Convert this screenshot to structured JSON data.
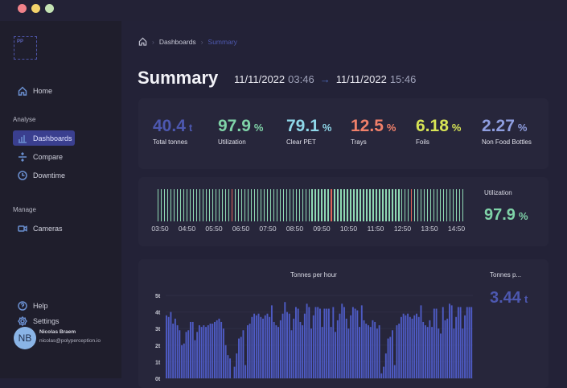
{
  "window": {
    "controls": [
      {
        "name": "close",
        "color": "#f0828a"
      },
      {
        "name": "minimize",
        "color": "#f3d36b"
      },
      {
        "name": "maximize",
        "color": "#c4e3b4"
      }
    ]
  },
  "sidebar": {
    "logo": "PP",
    "home": "Home",
    "sections": [
      {
        "title": "Analyse",
        "items": [
          {
            "label": "Dashboards",
            "icon": "bar-chart-icon",
            "active": true
          },
          {
            "label": "Compare",
            "icon": "compare-icon"
          },
          {
            "label": "Downtime",
            "icon": "clock-icon"
          }
        ]
      },
      {
        "title": "Manage",
        "items": [
          {
            "label": "Cameras",
            "icon": "camera-icon"
          }
        ]
      }
    ],
    "help": "Help",
    "settings": "Settings",
    "user": {
      "initials": "NB",
      "name": "Nicolas Braem",
      "email": "nicolas@polyperception.io"
    }
  },
  "breadcrumb": {
    "items": [
      "Dashboards",
      "Summary"
    ]
  },
  "header": {
    "title": "Summary",
    "start_date": "11/11/2022",
    "start_time": "03:46",
    "arrow": "→",
    "end_date": "11/11/2022",
    "end_time": "15:46"
  },
  "kpis": [
    {
      "value": "40.4",
      "unit": "t",
      "label": "Total tonnes",
      "color": "#4d58b0"
    },
    {
      "value": "97.9",
      "unit": "%",
      "label": "Utilization",
      "color": "#7fd3a8"
    },
    {
      "value": "79.1",
      "unit": "%",
      "label": "Clear PET",
      "color": "#8fd8ea"
    },
    {
      "value": "12.5",
      "unit": "%",
      "label": "Trays",
      "color": "#f0806a"
    },
    {
      "value": "6.18",
      "unit": "%",
      "label": "Foils",
      "color": "#d7e455"
    },
    {
      "value": "2.27",
      "unit": "%",
      "label": "Non Food Bottles",
      "color": "#8f9ee0"
    }
  ],
  "utilization": {
    "label": "Utilization",
    "value": "97.9",
    "unit": "%",
    "ticks": [
      "03:50",
      "04:50",
      "05:50",
      "06:50",
      "07:50",
      "08:50",
      "09:50",
      "10:50",
      "11:50",
      "12:50",
      "13:50",
      "14:50"
    ],
    "segments": 96,
    "downtime_segments": [
      23,
      54,
      79
    ],
    "colors": {
      "up": "#8fd9b4",
      "down": "#e0675a"
    }
  },
  "chart_data": {
    "type": "bar",
    "title": "Tonnes per hour",
    "ylabel": "",
    "ylim": [
      0,
      5
    ],
    "yticks": [
      "0t",
      "1t",
      "2t",
      "3t",
      "4t",
      "5t"
    ],
    "color": "#4e5bc4",
    "values": [
      3.8,
      3.7,
      4.0,
      3.3,
      3.6,
      3.2,
      2.9,
      2.0,
      2.1,
      2.8,
      2.9,
      3.4,
      3.4,
      2.3,
      2.8,
      3.2,
      3.1,
      3.2,
      3.1,
      3.2,
      3.3,
      3.3,
      3.4,
      3.5,
      3.6,
      3.4,
      3.0,
      2.0,
      1.4,
      1.2,
      0,
      0.7,
      1.5,
      2.4,
      2.5,
      2.9,
      0.8,
      3.2,
      3.3,
      3.7,
      3.9,
      3.8,
      3.9,
      3.7,
      3.6,
      3.8,
      3.9,
      3.7,
      4.4,
      3.4,
      3.2,
      3.1,
      3.5,
      3.9,
      4.6,
      4.0,
      3.9,
      2.9,
      3.6,
      4.3,
      4.2,
      3.4,
      3.2,
      3.9,
      4.5,
      4.3,
      3.0,
      3.8,
      4.3,
      4.3,
      4.2,
      3.1,
      4.2,
      4.2,
      4.2,
      3.1,
      4.3,
      2.8,
      3.5,
      3.9,
      4.5,
      4.3,
      3.6,
      3.0,
      3.8,
      4.3,
      4.2,
      4.1,
      3.1,
      4.4,
      3.5,
      3.3,
      3.2,
      3.1,
      3.5,
      3.4,
      3.0,
      3.2,
      0.3,
      0.7,
      1.5,
      2.4,
      2.5,
      2.9,
      0.8,
      3.2,
      3.3,
      3.7,
      3.9,
      3.8,
      3.9,
      3.7,
      3.6,
      3.8,
      3.9,
      3.7,
      4.4,
      3.4,
      3.2,
      3.1,
      3.5,
      3.1,
      4.2,
      4.2,
      3.0,
      2.7,
      4.3,
      3.5,
      3.6,
      4.5,
      4.4,
      3.0,
      3.7,
      4.3,
      4.3,
      3.0,
      3.8,
      4.3,
      4.3,
      4.3
    ]
  },
  "tonnes_summary": {
    "label": "Tonnes p...",
    "value": "3.44",
    "unit": "t",
    "color": "#4d58b0"
  }
}
